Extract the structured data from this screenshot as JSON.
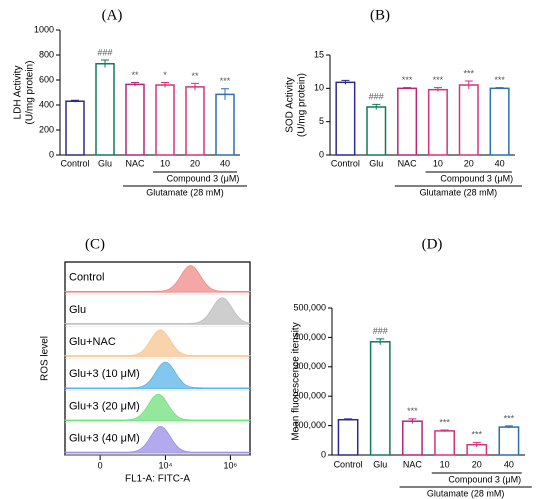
{
  "chart_data": [
    {
      "type": "bar",
      "panel_label": "(A)",
      "ylabel": [
        "LDH Activity",
        "(U/mg protein)"
      ],
      "categories": [
        "Control",
        "Glu",
        "NAC",
        "10",
        "20",
        "40"
      ],
      "values": [
        430,
        730,
        565,
        560,
        545,
        485
      ],
      "errors": [
        8,
        30,
        15,
        20,
        28,
        45
      ],
      "annotations": [
        null,
        "###",
        "**",
        "*",
        "**",
        "***"
      ],
      "colors": [
        "#2b2b8f",
        "#127a5c",
        "#b5267c",
        "#d8327a",
        "#d8327a",
        "#2d6fb0"
      ],
      "group_labels": [
        "Compound 3 (μM)",
        "Glutamate (28 mM)"
      ],
      "ylim": [
        0,
        1000
      ],
      "yticks": [
        0,
        200,
        400,
        600,
        800,
        1000
      ]
    },
    {
      "type": "bar",
      "panel_label": "(B)",
      "ylabel": [
        "SOD Activity",
        "(U/mg protein)"
      ],
      "categories": [
        "Control",
        "Glu",
        "NAC",
        "10",
        "20",
        "40"
      ],
      "values": [
        10.9,
        7.2,
        10.0,
        9.8,
        10.5,
        10.0
      ],
      "errors": [
        0.3,
        0.4,
        0.1,
        0.3,
        0.6,
        0.1
      ],
      "annotations": [
        null,
        "###",
        "***",
        "***",
        "***",
        "***"
      ],
      "colors": [
        "#2b2b8f",
        "#127a5c",
        "#b5267c",
        "#d8327a",
        "#d8327a",
        "#2d6fb0"
      ],
      "group_labels": [
        "Compound 3 (μM)",
        "Glutamate (28 mM)"
      ],
      "ylim": [
        0,
        15
      ],
      "yticks": [
        0,
        5,
        10,
        15
      ]
    },
    {
      "type": "flow",
      "panel_label": "(C)",
      "ylabel": "ROS level",
      "xlabel": "FL1-A: FITC-A",
      "xscale": "symlog",
      "linthresh": 100,
      "xlim": [
        -1100,
        4000000
      ],
      "xticks": [
        {
          "value": 0,
          "label": "0"
        },
        {
          "value": 10000,
          "label": "10⁴"
        },
        {
          "value": 1000000,
          "label": "10⁶"
        }
      ],
      "series": [
        {
          "name": "Control",
          "color": "#f08a8a",
          "peak": 60000
        },
        {
          "name": "Glu",
          "color": "#bdbdbd",
          "peak": 560000
        },
        {
          "name": "Glu+NAC",
          "color": "#f5c590",
          "peak": 7000
        },
        {
          "name": "Glu+3 (10 μM)",
          "color": "#5ab4e8",
          "peak": 10000
        },
        {
          "name": "Glu+3 (20 μM)",
          "color": "#6fe07c",
          "peak": 6000
        },
        {
          "name": "Glu+3 (40 μM)",
          "color": "#9a8ee8",
          "peak": 7000
        }
      ]
    },
    {
      "type": "bar",
      "panel_label": "(D)",
      "ylabel": [
        "Mean fluorescence itensity"
      ],
      "categories": [
        "Control",
        "Glu",
        "NAC",
        "10",
        "20",
        "40"
      ],
      "values": [
        120000,
        385000,
        115000,
        82000,
        35000,
        95000
      ],
      "errors": [
        3000,
        10000,
        8000,
        3000,
        8000,
        4000
      ],
      "annotations": [
        null,
        "###",
        "***",
        "***",
        "***",
        "***"
      ],
      "colors": [
        "#2b2b8f",
        "#127a5c",
        "#b5267c",
        "#d8327a",
        "#d8327a",
        "#2d6fb0"
      ],
      "group_labels": [
        "Compound 3 (μM)",
        "Glutamate (28 mM)"
      ],
      "ylim": [
        0,
        500000
      ],
      "yticks": [
        0,
        {
          "value": 100000,
          "label": "100,000"
        },
        {
          "value": 200000,
          "label": "200,000"
        },
        {
          "value": 300000,
          "label": "300,000"
        },
        {
          "value": 400000,
          "label": "400,000"
        },
        {
          "value": 500000,
          "label": "500,000"
        }
      ]
    }
  ]
}
